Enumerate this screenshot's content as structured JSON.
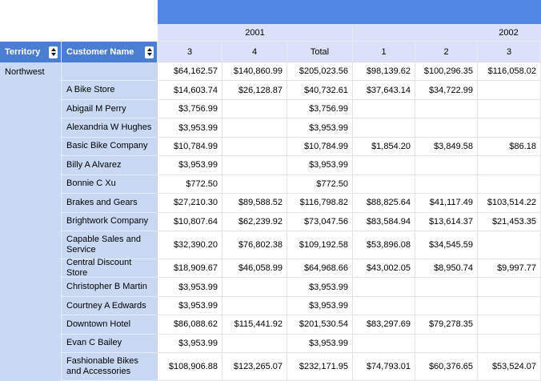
{
  "header": {
    "territory_label": "Territory",
    "customer_label": "Customer Name",
    "year_groups": [
      {
        "label": "2001"
      },
      {
        "label": "2002"
      }
    ],
    "column_headers": [
      "3",
      "4",
      "Total",
      "1",
      "2",
      "3"
    ]
  },
  "body": {
    "territory": "Northwest"
  },
  "rows": [
    {
      "name": "",
      "tall": false,
      "cells": [
        "$64,162.57",
        "$140,860.99",
        "$205,023.56",
        "$98,139.62",
        "$100,296.35",
        "$116,058.02"
      ]
    },
    {
      "name": "A Bike Store",
      "tall": false,
      "cells": [
        "$14,603.74",
        "$26,128.87",
        "$40,732.61",
        "$37,643.14",
        "$34,722.99",
        ""
      ]
    },
    {
      "name": "Abigail M Perry",
      "tall": false,
      "cells": [
        "$3,756.99",
        "",
        "$3,756.99",
        "",
        "",
        ""
      ]
    },
    {
      "name": "Alexandria W Hughes",
      "tall": false,
      "cells": [
        "$3,953.99",
        "",
        "$3,953.99",
        "",
        "",
        ""
      ]
    },
    {
      "name": "Basic Bike Company",
      "tall": false,
      "cells": [
        "$10,784.99",
        "",
        "$10,784.99",
        "$1,854.20",
        "$3,849.58",
        "$86.18"
      ]
    },
    {
      "name": "Billy A Alvarez",
      "tall": false,
      "cells": [
        "$3,953.99",
        "",
        "$3,953.99",
        "",
        "",
        ""
      ]
    },
    {
      "name": "Bonnie C Xu",
      "tall": false,
      "cells": [
        "$772.50",
        "",
        "$772.50",
        "",
        "",
        ""
      ]
    },
    {
      "name": "Brakes and Gears",
      "tall": false,
      "cells": [
        "$27,210.30",
        "$89,588.52",
        "$116,798.82",
        "$88,825.64",
        "$41,117.49",
        "$103,514.22"
      ]
    },
    {
      "name": "Brightwork Company",
      "tall": false,
      "cells": [
        "$10,807.64",
        "$62,239.92",
        "$73,047.56",
        "$83,584.94",
        "$13,614.37",
        "$21,453.35"
      ]
    },
    {
      "name": "Capable Sales and Service",
      "tall": true,
      "cells": [
        "$32,390.20",
        "$76,802.38",
        "$109,192.58",
        "$53,896.08",
        "$34,545.59",
        ""
      ]
    },
    {
      "name": "Central Discount Store",
      "tall": false,
      "cells": [
        "$18,909.67",
        "$46,058.99",
        "$64,968.66",
        "$43,002.05",
        "$8,950.74",
        "$9,997.77"
      ]
    },
    {
      "name": "Christopher B Martin",
      "tall": false,
      "cells": [
        "$3,953.99",
        "",
        "$3,953.99",
        "",
        "",
        ""
      ]
    },
    {
      "name": "Courtney A Edwards",
      "tall": false,
      "cells": [
        "$3,953.99",
        "",
        "$3,953.99",
        "",
        "",
        ""
      ]
    },
    {
      "name": "Downtown Hotel",
      "tall": false,
      "cells": [
        "$86,088.62",
        "$115,441.92",
        "$201,530.54",
        "$83,297.69",
        "$79,278.35",
        ""
      ]
    },
    {
      "name": "Evan C Bailey",
      "tall": false,
      "cells": [
        "$3,953.99",
        "",
        "$3,953.99",
        "",
        "",
        ""
      ]
    },
    {
      "name": "Fashionable Bikes and Accessories",
      "tall": true,
      "cells": [
        "$108,906.88",
        "$123,265.07",
        "$232,171.95",
        "$74,793.01",
        "$60,376.65",
        "$53,524.07"
      ]
    }
  ],
  "icons": {
    "sort": "up-down-triangles"
  },
  "colors": {
    "band_blue": "#5187E2",
    "header_blue": "#4A7ED2",
    "light_header": "#DAE1F9",
    "light_header_border": "#E7EAF5",
    "label_blue": "#C9D9F4",
    "label_border": "#E5ECFA",
    "data_border": "#E2E2E2"
  }
}
